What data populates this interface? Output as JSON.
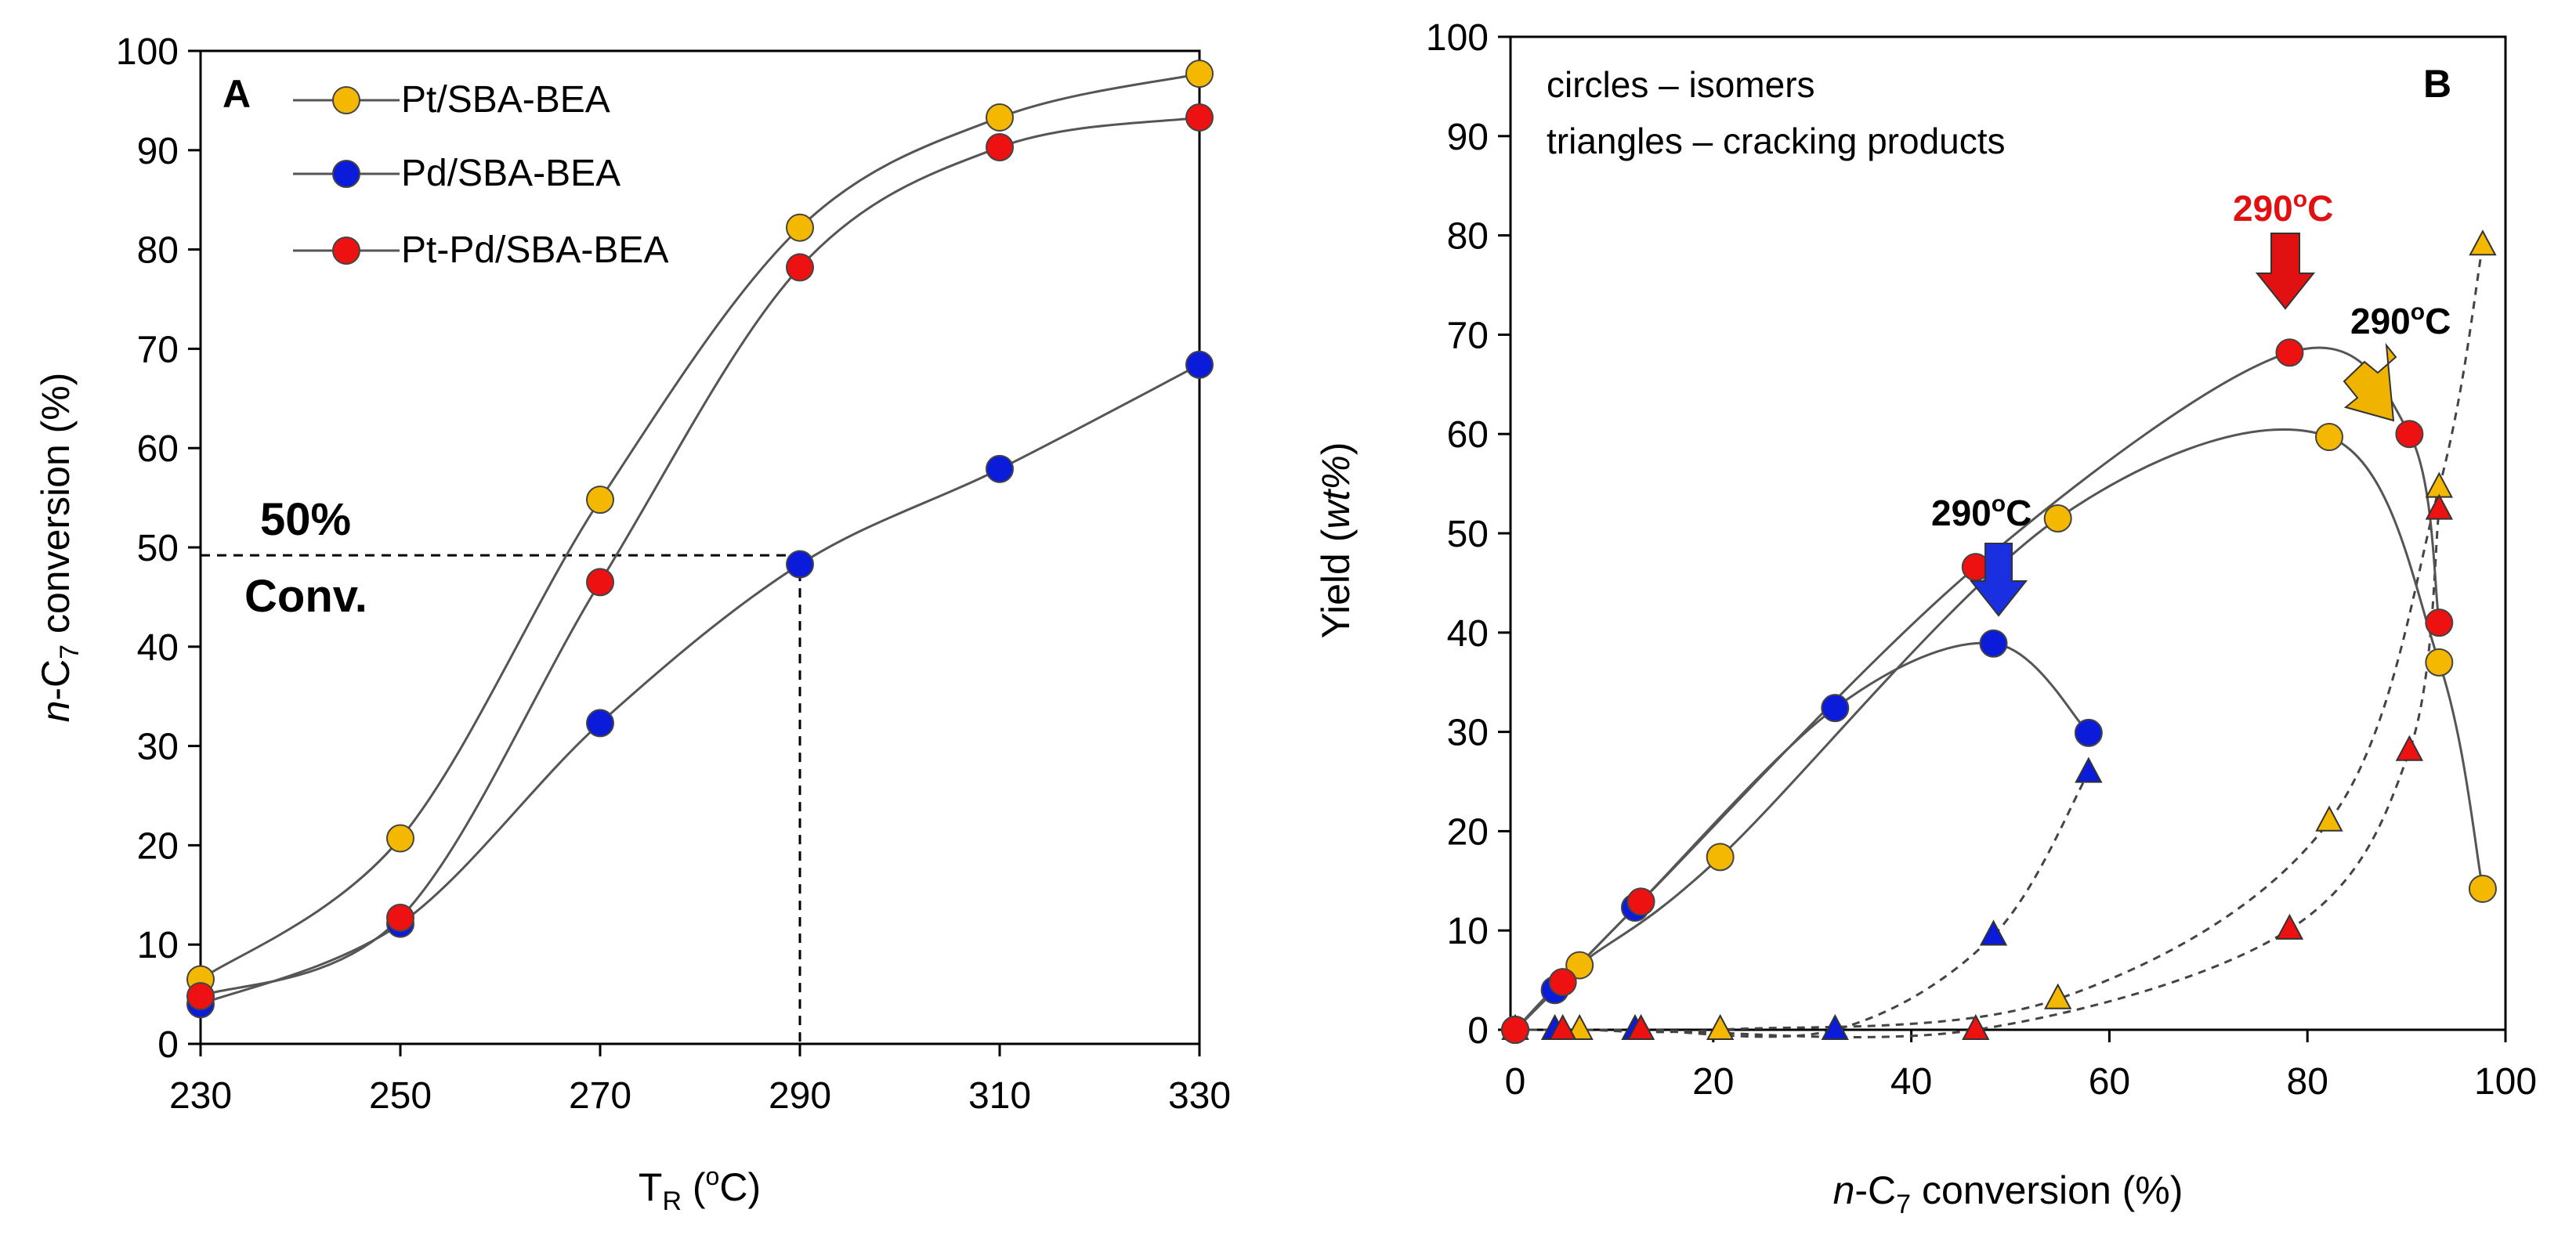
{
  "colors": {
    "pt": "#f5b800",
    "pd": "#0a1bd9",
    "ptpd": "#ee1111",
    "line": "#555555",
    "pd_arrow": "#1a2fe0",
    "pt_arrow": "#f0b400",
    "ptpd_arrow": "#e11111"
  },
  "chart_data": [
    {
      "type": "line",
      "panel": "A",
      "ylabel_italic": "n",
      "ylabel_main": "-C",
      "ylabel_sub": "7",
      "ylabel_tail": " conversion (%)",
      "xlabel_main": "T",
      "xlabel_sub": "R",
      "xlabel_tail_open": " (",
      "xlabel_sup": "o",
      "xlabel_tail_close": "C)",
      "xlim": [
        230,
        330
      ],
      "ylim": [
        0,
        100
      ],
      "xticks": [
        "230",
        "250",
        "270",
        "290",
        "310",
        "330"
      ],
      "yticks": [
        "0",
        "10",
        "20",
        "30",
        "40",
        "50",
        "60",
        "70",
        "80",
        "90",
        "100"
      ],
      "x": [
        230,
        250,
        270,
        290,
        310,
        330
      ],
      "series": [
        {
          "name": "Pt/SBA-BEA",
          "key": "pt",
          "values": [
            6.5,
            20.7,
            54.8,
            82.2,
            93.3,
            97.7
          ]
        },
        {
          "name": "Pd/SBA-BEA",
          "key": "pd",
          "values": [
            4,
            12.1,
            32.3,
            48.3,
            57.9,
            68.4
          ]
        },
        {
          "name": "Pt-Pd/SBA-BEA",
          "key": "ptpd",
          "values": [
            4.8,
            12.7,
            46.5,
            78.2,
            90.3,
            93.3
          ]
        }
      ],
      "guide": {
        "x": 290,
        "y": 49.2
      },
      "annotation_line1": "50%",
      "annotation_line2": "Conv."
    },
    {
      "type": "scatter",
      "panel": "B",
      "ylabel_main": "Yield (",
      "ylabel_italic": "wt%",
      "ylabel_tail": ")",
      "xlabel_italic": "n",
      "xlabel_main": "-C",
      "xlabel_sub": "7",
      "xlabel_tail": " conversion (%)",
      "xlim": [
        0,
        100
      ],
      "ylim": [
        0,
        100
      ],
      "xticks": [
        "0",
        "20",
        "40",
        "60",
        "80",
        "100"
      ],
      "yticks": [
        "0",
        "10",
        "20",
        "30",
        "40",
        "50",
        "60",
        "70",
        "80",
        "90",
        "100"
      ],
      "note_line1": "circles – isomers",
      "note_line2": "triangles – cracking products",
      "isomers": [
        {
          "key": "pt",
          "x": [
            0,
            6.5,
            20.7,
            54.8,
            82.2,
            93.3,
            97.7
          ],
          "y": [
            0,
            6.5,
            17.4,
            51.5,
            59.7,
            37,
            14.2
          ]
        },
        {
          "key": "pd",
          "x": [
            0,
            4,
            12.1,
            32.3,
            48.3,
            57.9
          ],
          "y": [
            0,
            4,
            12.3,
            32.4,
            38.9,
            29.9
          ]
        },
        {
          "key": "ptpd",
          "x": [
            0,
            4.8,
            12.7,
            46.5,
            78.2,
            90.3,
            93.3
          ],
          "y": [
            0,
            4.8,
            12.9,
            46.6,
            68.2,
            60,
            41
          ]
        }
      ],
      "cracking": [
        {
          "key": "pt",
          "x": [
            0,
            6.5,
            20.7,
            54.8,
            82.2,
            93.3,
            97.7
          ],
          "y": [
            0,
            0,
            0,
            3.1,
            21,
            54.6,
            79
          ]
        },
        {
          "key": "pd",
          "x": [
            0,
            4,
            12.1,
            32.3,
            48.3,
            57.9
          ],
          "y": [
            0,
            0,
            0,
            0,
            9.5,
            25.9
          ]
        },
        {
          "key": "ptpd",
          "x": [
            0,
            4.8,
            12.7,
            46.5,
            78.2,
            90.3,
            93.3
          ],
          "y": [
            0,
            0,
            0,
            0,
            10.1,
            28.1,
            52.4
          ]
        }
      ],
      "temp_base": "290",
      "temp_sup": "o",
      "temp_unit": "C"
    }
  ]
}
